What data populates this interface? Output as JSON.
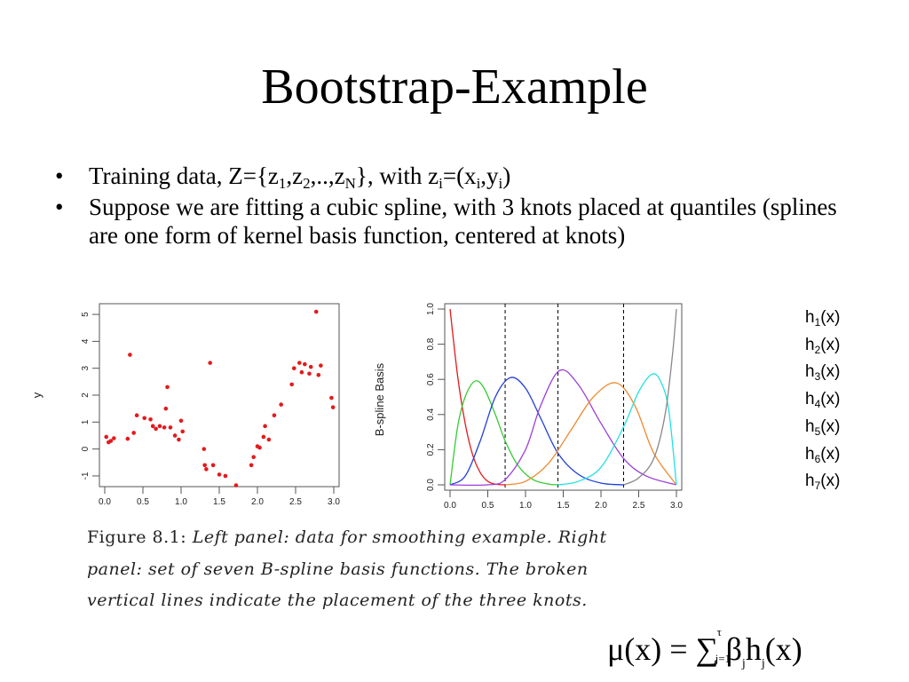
{
  "slide": {
    "title": "Bootstrap-Example"
  },
  "bullets": {
    "b1": {
      "prefix": "Training data, Z={z",
      "s1": "1",
      "comma1": ",z",
      "s2": "2",
      "mid": ",..,z",
      "sN": "N",
      "mid2": "}, with z",
      "si1": "i",
      "eq": "=(x",
      "si2": "i",
      "comma2": ",y",
      "si3": "i",
      "end": ")"
    },
    "b2": "Suppose we are fitting a cubic spline, with 3 knots placed at quantiles (splines are one form of kernel basis function, centered at knots)"
  },
  "legend": [
    {
      "h": "h",
      "sub": "1",
      "arg": "(x)"
    },
    {
      "h": "h",
      "sub": "2",
      "arg": "(x)"
    },
    {
      "h": "h",
      "sub": "3",
      "arg": "(x)"
    },
    {
      "h": "h",
      "sub": "4",
      "arg": "(x)"
    },
    {
      "h": "h",
      "sub": "5",
      "arg": "(x)"
    },
    {
      "h": "h",
      "sub": "6",
      "arg": "(x)"
    },
    {
      "h": "h",
      "sub": "7",
      "arg": "(x)"
    }
  ],
  "caption": {
    "figure_label": "Figure 8.1:",
    "text": "Left panel: data for smoothing example. Right panel: set of seven B-spline basis functions. The broken vertical lines indicate the placement of the three knots."
  },
  "formula": {
    "lhs": "μ(x) = ",
    "sum": "∑",
    "upper": "τ",
    "lower": "j=1",
    "beta": "β",
    "beta_sub": "j",
    "h": "h",
    "h_sub": "j",
    "arg": "(x)"
  },
  "chart_data": [
    {
      "type": "scatter",
      "title": "",
      "xlabel": "",
      "ylabel": "y",
      "xlim": [
        0,
        3
      ],
      "ylim": [
        -1.2,
        5.2
      ],
      "xticks": [
        "0.0",
        "0.5",
        "1.0",
        "1.5",
        "2.0",
        "2.5",
        "3.0"
      ],
      "yticks": [
        "-1",
        "0",
        "1",
        "2",
        "3",
        "4",
        "5"
      ],
      "point_color": "#e31a1c",
      "points": [
        [
          0.02,
          0.45
        ],
        [
          0.05,
          0.25
        ],
        [
          0.08,
          0.3
        ],
        [
          0.12,
          0.4
        ],
        [
          0.3,
          0.38
        ],
        [
          0.33,
          3.5
        ],
        [
          0.38,
          0.6
        ],
        [
          0.42,
          1.25
        ],
        [
          0.52,
          1.15
        ],
        [
          0.6,
          1.1
        ],
        [
          0.63,
          0.85
        ],
        [
          0.67,
          0.75
        ],
        [
          0.72,
          0.85
        ],
        [
          0.78,
          0.8
        ],
        [
          0.8,
          1.5
        ],
        [
          0.82,
          2.3
        ],
        [
          0.86,
          0.8
        ],
        [
          0.92,
          0.5
        ],
        [
          0.97,
          0.35
        ],
        [
          1.0,
          1.05
        ],
        [
          1.02,
          0.65
        ],
        [
          1.3,
          0.0
        ],
        [
          1.31,
          -0.6
        ],
        [
          1.33,
          -0.75
        ],
        [
          1.38,
          3.2
        ],
        [
          1.42,
          -0.6
        ],
        [
          1.5,
          -0.95
        ],
        [
          1.58,
          -1.0
        ],
        [
          1.72,
          -1.35
        ],
        [
          1.92,
          -0.6
        ],
        [
          1.95,
          -0.3
        ],
        [
          2.0,
          0.1
        ],
        [
          2.03,
          0.05
        ],
        [
          2.08,
          0.45
        ],
        [
          2.1,
          0.85
        ],
        [
          2.15,
          0.35
        ],
        [
          2.22,
          1.25
        ],
        [
          2.31,
          1.65
        ],
        [
          2.45,
          2.4
        ],
        [
          2.48,
          3.0
        ],
        [
          2.55,
          3.2
        ],
        [
          2.58,
          2.85
        ],
        [
          2.62,
          3.15
        ],
        [
          2.68,
          2.8
        ],
        [
          2.7,
          3.05
        ],
        [
          2.77,
          5.1
        ],
        [
          2.8,
          2.75
        ],
        [
          2.83,
          3.1
        ],
        [
          2.97,
          1.9
        ],
        [
          2.99,
          1.55
        ]
      ]
    },
    {
      "type": "line",
      "title": "",
      "xlabel": "",
      "ylabel": "B-spline Basis",
      "xlim": [
        0,
        3
      ],
      "ylim": [
        0,
        1
      ],
      "xticks": [
        "0.0",
        "0.5",
        "1.0",
        "1.5",
        "2.0",
        "2.5",
        "3.0"
      ],
      "yticks": [
        "0.0",
        "0.2",
        "0.4",
        "0.6",
        "0.8",
        "1.0"
      ],
      "knots": [
        0.73,
        1.43,
        2.3
      ],
      "series": [
        {
          "color": "#e31a1c",
          "x": [
            0,
            0.1,
            0.2,
            0.3,
            0.4,
            0.5,
            0.6,
            0.73
          ],
          "y": [
            1.0,
            0.62,
            0.35,
            0.17,
            0.07,
            0.02,
            0.004,
            0.0
          ]
        },
        {
          "color": "#33cc33",
          "x": [
            0,
            0.1,
            0.2,
            0.33,
            0.45,
            0.6,
            0.73,
            0.9,
            1.1,
            1.3,
            1.43
          ],
          "y": [
            0.0,
            0.33,
            0.5,
            0.59,
            0.55,
            0.4,
            0.25,
            0.11,
            0.03,
            0.005,
            0.0
          ]
        },
        {
          "color": "#1f3fd9",
          "x": [
            0,
            0.2,
            0.4,
            0.6,
            0.8,
            1.0,
            1.2,
            1.43,
            1.7,
            2.0,
            2.3
          ],
          "y": [
            0.0,
            0.05,
            0.25,
            0.5,
            0.61,
            0.55,
            0.38,
            0.18,
            0.06,
            0.01,
            0.0
          ]
        },
        {
          "color": "#9b3fd9",
          "x": [
            0.0,
            0.5,
            0.73,
            1.0,
            1.2,
            1.45,
            1.7,
            2.0,
            2.3,
            2.6,
            3.0
          ],
          "y": [
            0.0,
            0.0,
            0.03,
            0.2,
            0.45,
            0.65,
            0.57,
            0.35,
            0.15,
            0.05,
            0.0
          ]
        },
        {
          "color": "#f08a30",
          "x": [
            0.73,
            1.0,
            1.3,
            1.6,
            1.9,
            2.2,
            2.45,
            2.7,
            3.0
          ],
          "y": [
            0.0,
            0.02,
            0.12,
            0.31,
            0.5,
            0.58,
            0.45,
            0.18,
            0.0
          ]
        },
        {
          "color": "#22e1e1",
          "x": [
            1.43,
            1.7,
            2.0,
            2.3,
            2.5,
            2.68,
            2.8,
            2.9,
            3.0
          ],
          "y": [
            0.0,
            0.02,
            0.1,
            0.33,
            0.53,
            0.63,
            0.58,
            0.42,
            0.0
          ]
        },
        {
          "color": "#888888",
          "x": [
            2.3,
            2.5,
            2.7,
            2.85,
            2.95,
            3.0
          ],
          "y": [
            0.0,
            0.04,
            0.15,
            0.4,
            0.75,
            1.0
          ]
        }
      ]
    }
  ]
}
